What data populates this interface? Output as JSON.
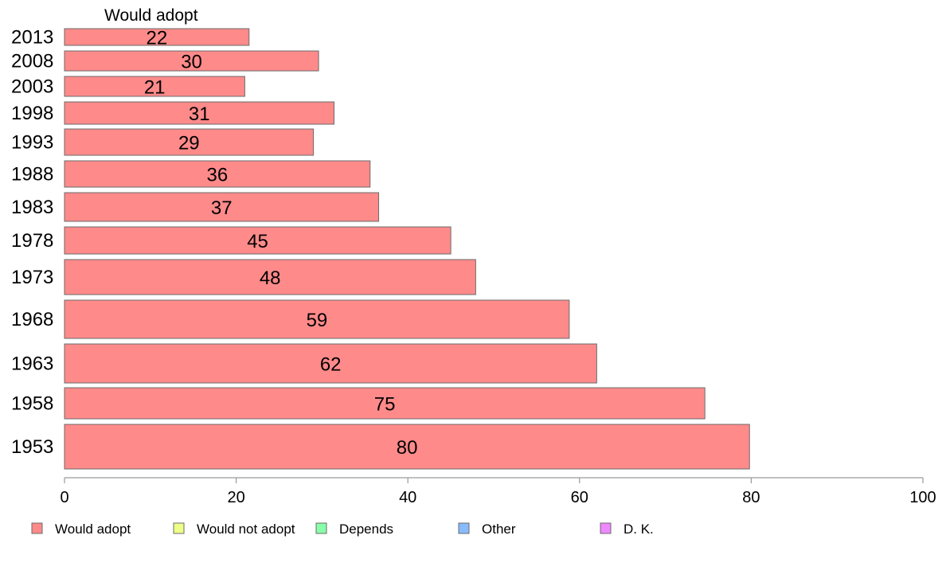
{
  "chart_data": {
    "type": "bar",
    "orientation": "horizontal",
    "series_title": "Would adopt",
    "categories": [
      "2013",
      "2008",
      "2003",
      "1998",
      "1993",
      "1988",
      "1983",
      "1978",
      "1973",
      "1968",
      "1963",
      "1958",
      "1953"
    ],
    "series": [
      {
        "name": "Would adopt",
        "color": "#ff8a8a",
        "values": [
          22,
          30,
          21,
          31,
          29,
          36,
          37,
          45,
          48,
          59,
          62,
          75,
          80
        ]
      }
    ],
    "bar_lengths": [
      21.5,
      29.6,
      21.0,
      31.4,
      29.0,
      35.6,
      36.6,
      45.0,
      47.9,
      58.8,
      62.0,
      74.6,
      79.8
    ],
    "xlim": [
      0,
      100
    ],
    "xticks": [
      "0",
      "20",
      "40",
      "60",
      "80",
      "100"
    ],
    "legend": [
      {
        "label": "Would adopt",
        "color": "#ff8a8a"
      },
      {
        "label": "Would not adopt",
        "color": "#eeff88"
      },
      {
        "label": "Depends",
        "color": "#88ffaa"
      },
      {
        "label": "Other",
        "color": "#88bbff"
      },
      {
        "label": "D. K.",
        "color": "#ee88ff"
      }
    ],
    "legend_position": "bottom",
    "grid": false
  }
}
